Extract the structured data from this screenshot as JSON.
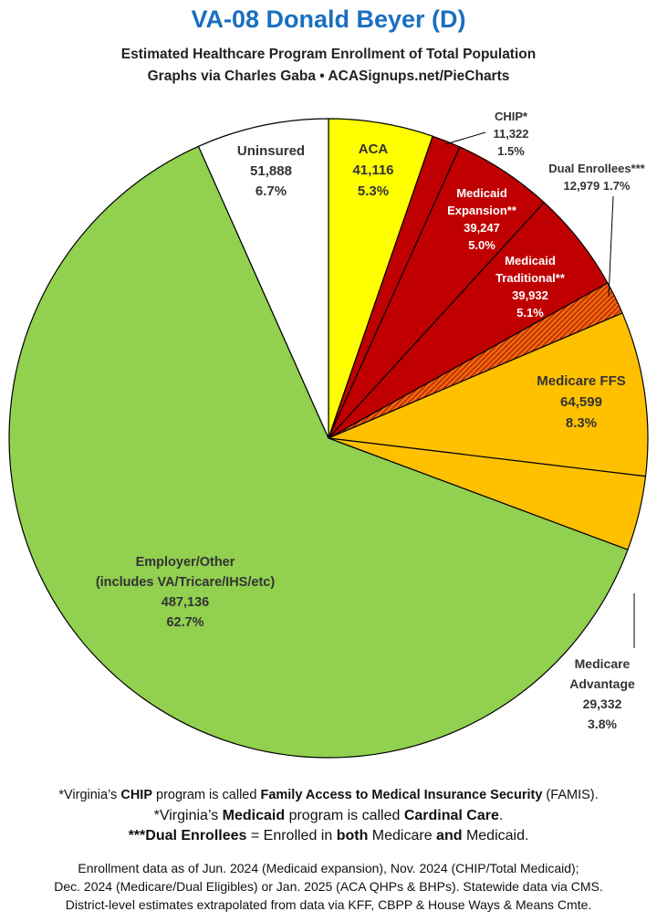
{
  "header": {
    "title": "VA-08 Donald Beyer (D)",
    "subtitle": "Estimated Healthcare Program Enrollment of Total Population",
    "credit": "Graphs via Charles Gaba  •  ACASignups.net/PieCharts"
  },
  "chart_data": {
    "type": "pie",
    "title": "VA-08 Donald Beyer (D)",
    "slices": [
      {
        "label": "ACA",
        "value": 41116,
        "percent": "5.3%",
        "color": "#ffff00"
      },
      {
        "label": "CHIP*",
        "value": 11322,
        "percent": "1.5%",
        "color": "#c00000"
      },
      {
        "label": "Medicaid Expansion**",
        "value": 39247,
        "percent": "5.0%",
        "color": "#c00000"
      },
      {
        "label": "Medicaid Traditional**",
        "value": 39932,
        "percent": "5.1%",
        "color": "#c00000"
      },
      {
        "label": "Dual Enrollees***",
        "value": 12979,
        "percent": "1.7%",
        "color": "#e36c0a",
        "pattern": "hatched"
      },
      {
        "label": "Medicare FFS",
        "value": 64599,
        "percent": "8.3%",
        "color": "#ffc000"
      },
      {
        "label": "Medicare Advantage",
        "value": 29332,
        "percent": "3.8%",
        "color": "#ffc000"
      },
      {
        "label": "Employer/Other (includes VA/Tricare/IHS/etc)",
        "value": 487136,
        "percent": "62.7%",
        "color": "#92d050"
      },
      {
        "label": "Uninsured",
        "value": 51888,
        "percent": "6.7%",
        "color": "#ffffff"
      }
    ],
    "labels": {
      "aca": [
        "ACA",
        "41,116",
        "5.3%"
      ],
      "chip": [
        "CHIP*",
        "11,322",
        "1.5%"
      ],
      "expansion": [
        "Medicaid",
        "Expansion**",
        "39,247",
        "5.0%"
      ],
      "traditional": [
        "Medicaid",
        "Traditional**",
        "39,932",
        "5.1%"
      ],
      "dual": [
        "Dual Enrollees***",
        "12,979 1.7%"
      ],
      "ffs": [
        "Medicare FFS",
        "64,599",
        "8.3%"
      ],
      "advantage": [
        "Medicare",
        "Advantage",
        "29,332",
        "3.8%"
      ],
      "employer": [
        "Employer/Other",
        "(includes VA/Tricare/IHS/etc)",
        "487,136",
        "62.7%"
      ],
      "uninsured": [
        "Uninsured",
        "51,888",
        "6.7%"
      ]
    }
  },
  "notes": {
    "chip": {
      "a": "*Virginia’s ",
      "b": "CHIP",
      "c": " program is called ",
      "d": "Family Access to Medical Insurance Security",
      "e": " (FAMIS)."
    },
    "medicaid": {
      "a": "*Virginia’s ",
      "b": "Medicaid",
      "c": " program is called ",
      "d": "Cardinal Care",
      "e": "."
    },
    "dual": {
      "a": "***Dual Enrollees",
      "b": " = Enrolled in ",
      "c": "both",
      "d": " Medicare ",
      "e": "and",
      "f": " Medicaid."
    }
  },
  "sources": {
    "line1": "Enrollment data as of Jun. 2024 (Medicaid expansion), Nov. 2024 (CHIP/Total Medicaid);",
    "line2": "Dec. 2024 (Medicare/Dual Eligibles) or Jan. 2025 (ACA QHPs & BHPs). Statewide data via CMS.",
    "line3": "District-level estimates extrapolated from data via KFF, CBPP & House Ways & Means Cmte."
  }
}
